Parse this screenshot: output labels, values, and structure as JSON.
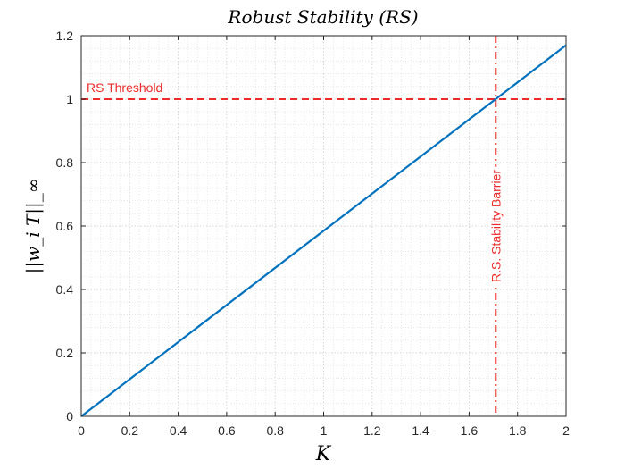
{
  "chart_data": {
    "type": "line",
    "title": "Robust Stability (RS)",
    "xlabel": "K",
    "ylabel": "||w_i T||_∞",
    "xlim": [
      0,
      2
    ],
    "ylim": [
      0,
      1.2
    ],
    "xticks": [
      0,
      0.2,
      0.4,
      0.6,
      0.8,
      1,
      1.2,
      1.4,
      1.6,
      1.8,
      2
    ],
    "xtick_labels": [
      "0",
      "0.2",
      "0.4",
      "0.6",
      "0.8",
      "1",
      "1.2",
      "1.4",
      "1.6",
      "1.8",
      "2"
    ],
    "yticks": [
      0,
      0.2,
      0.4,
      0.6,
      0.8,
      1,
      1.2
    ],
    "ytick_labels": [
      "0",
      "0.2",
      "0.4",
      "0.6",
      "0.8",
      "1",
      "1.2"
    ],
    "grid": "on (major and minor, dotted)",
    "series": [
      {
        "color": "#0072BD",
        "x": [
          0,
          2
        ],
        "y": [
          0,
          1.17
        ]
      }
    ],
    "annotations": {
      "threshold_text": "RS Threshold",
      "threshold_y": 1,
      "barrier_text": "R.S. Stability Barrier",
      "barrier_x": 1.71,
      "color": "#EE2B2B"
    }
  }
}
